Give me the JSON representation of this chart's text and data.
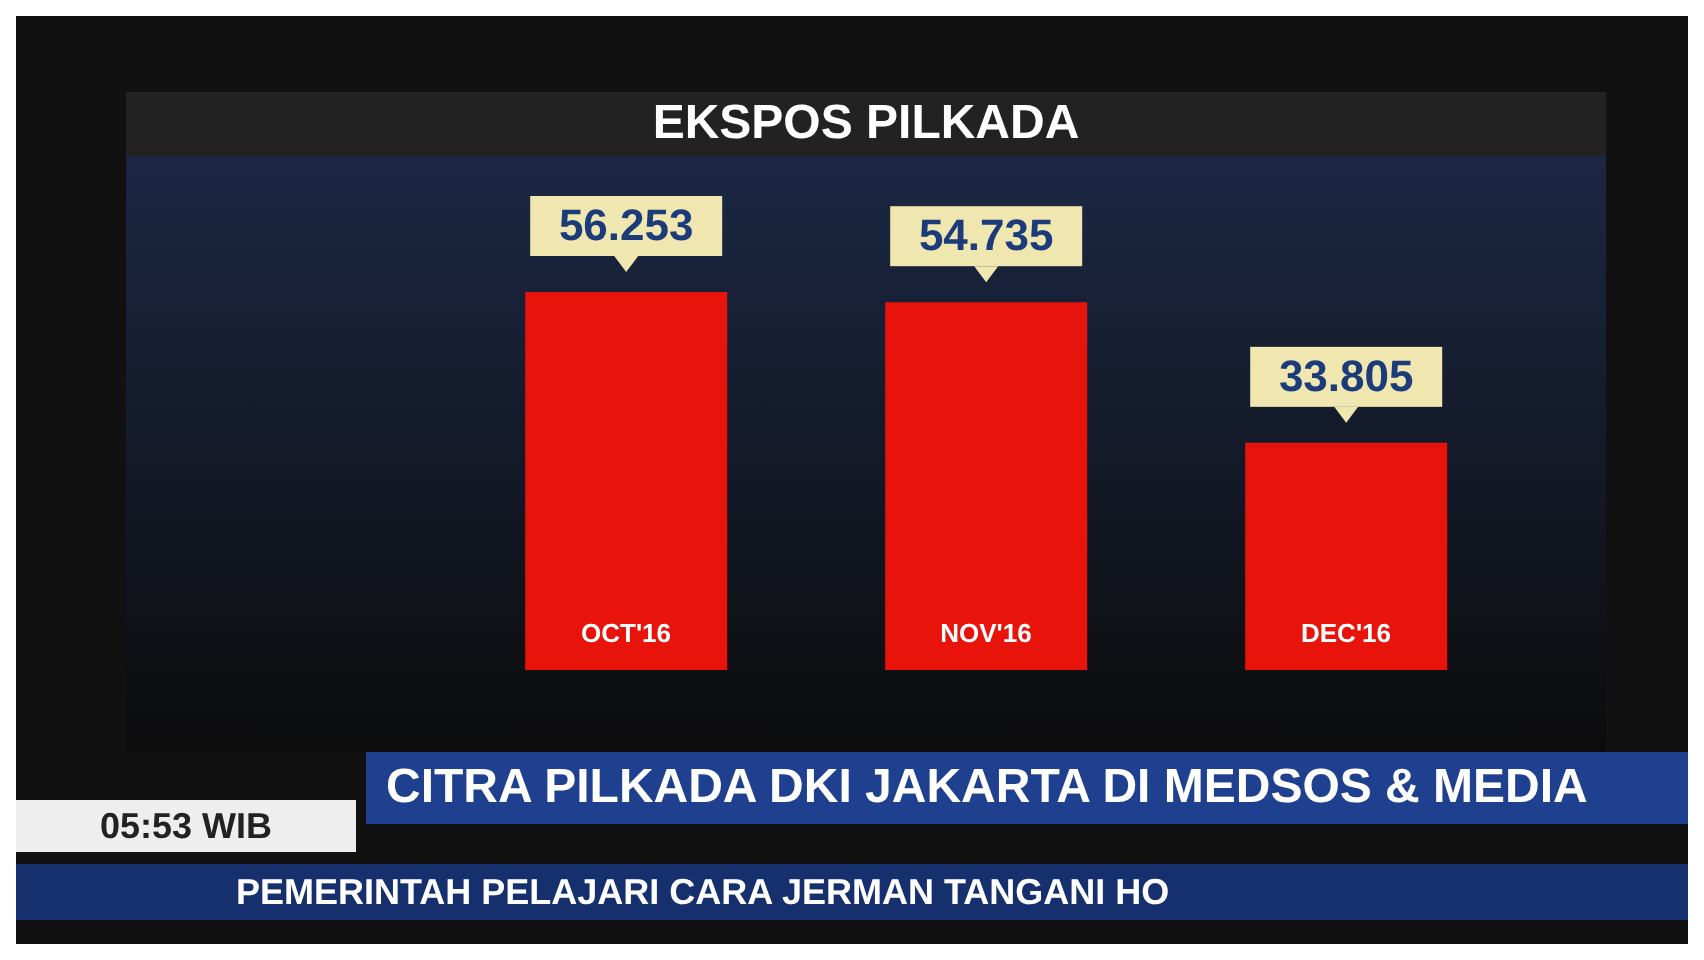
{
  "chart_data": {
    "type": "bar",
    "title": "EKSPOS PILKADA",
    "categories": [
      "OCT'16",
      "NOV'16",
      "DEC'16"
    ],
    "values": [
      56253,
      54735,
      33805
    ],
    "value_labels": [
      "56.253",
      "54.735",
      "33.805"
    ],
    "color": "#e8140c",
    "annotations": [
      "CITRA PILKADA DKI JAKARTA DI MEDSOS & MEDIA",
      "05:53 WIB",
      "PEMERINTAH PELAJARI CARA JERMAN TANGANI HO"
    ]
  }
}
